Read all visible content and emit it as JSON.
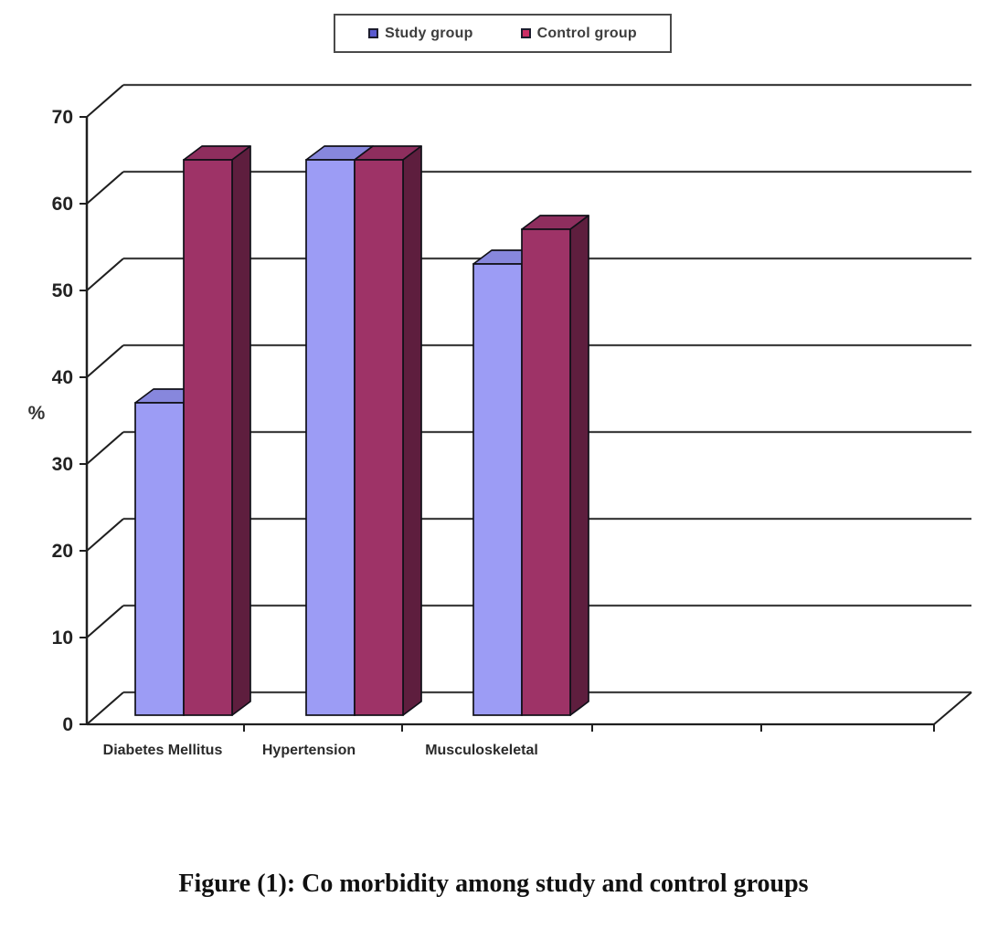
{
  "caption": {
    "text": "Figure (1): Co morbidity among study and control groups"
  },
  "chart_data": {
    "type": "bar",
    "style": "3d-column",
    "title": "",
    "categories": [
      "Diabetes Mellitus",
      "Hypertension",
      "Musculoskeletal"
    ],
    "series": [
      {
        "name": "Study group",
        "values": [
          36,
          64,
          52
        ],
        "color": "#9c9cf5",
        "color_top": "#8787dd",
        "color_side": "#6c6cc4",
        "marker_color": "#5a5ad0"
      },
      {
        "name": "Control group",
        "values": [
          64,
          64,
          56
        ],
        "color": "#9e3367",
        "color_top": "#8e2e5e",
        "color_side": "#5e1e3e",
        "marker_color": "#cc2e66"
      }
    ],
    "xlabel": "",
    "ylabel": "%",
    "ylim": [
      0,
      70
    ],
    "yticks": [
      0,
      10,
      20,
      30,
      40,
      50,
      60,
      70
    ],
    "grid": true,
    "legend_position": "top",
    "colors": {
      "grid": "#3f3f3f",
      "axis": "#1f1f1f",
      "bar_outline": "#101018"
    }
  }
}
